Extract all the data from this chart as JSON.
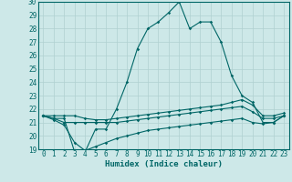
{
  "xlabel": "Humidex (Indice chaleur)",
  "bg_color": "#cde8e8",
  "line_color": "#006666",
  "grid_color": "#b0d0d0",
  "xlim": [
    -0.5,
    23.5
  ],
  "ylim": [
    19,
    30
  ],
  "xticks": [
    0,
    1,
    2,
    3,
    4,
    5,
    6,
    7,
    8,
    9,
    10,
    11,
    12,
    13,
    14,
    15,
    16,
    17,
    18,
    19,
    20,
    21,
    22,
    23
  ],
  "yticks": [
    19,
    20,
    21,
    22,
    23,
    24,
    25,
    26,
    27,
    28,
    29,
    30
  ],
  "line1_y": [
    21.5,
    21.3,
    21.3,
    18.8,
    18.8,
    20.5,
    20.5,
    22.0,
    24.0,
    26.5,
    28.0,
    28.5,
    29.2,
    30.0,
    28.0,
    28.5,
    28.5,
    27.0,
    24.5,
    23.0,
    22.5,
    21.0,
    21.0,
    21.5
  ],
  "line2_y": [
    21.5,
    21.5,
    21.5,
    21.5,
    21.3,
    21.2,
    21.2,
    21.3,
    21.4,
    21.5,
    21.6,
    21.7,
    21.8,
    21.9,
    22.0,
    22.1,
    22.2,
    22.3,
    22.5,
    22.7,
    22.3,
    21.5,
    21.5,
    21.7
  ],
  "line3_y": [
    21.5,
    21.3,
    21.0,
    21.0,
    21.0,
    21.0,
    21.0,
    21.0,
    21.1,
    21.2,
    21.3,
    21.4,
    21.5,
    21.6,
    21.7,
    21.8,
    21.9,
    22.0,
    22.1,
    22.2,
    21.8,
    21.3,
    21.3,
    21.5
  ],
  "line4_y": [
    21.5,
    21.2,
    20.8,
    19.5,
    18.9,
    19.2,
    19.5,
    19.8,
    20.0,
    20.2,
    20.4,
    20.5,
    20.6,
    20.7,
    20.8,
    20.9,
    21.0,
    21.1,
    21.2,
    21.3,
    21.0,
    20.9,
    21.0,
    21.5
  ]
}
